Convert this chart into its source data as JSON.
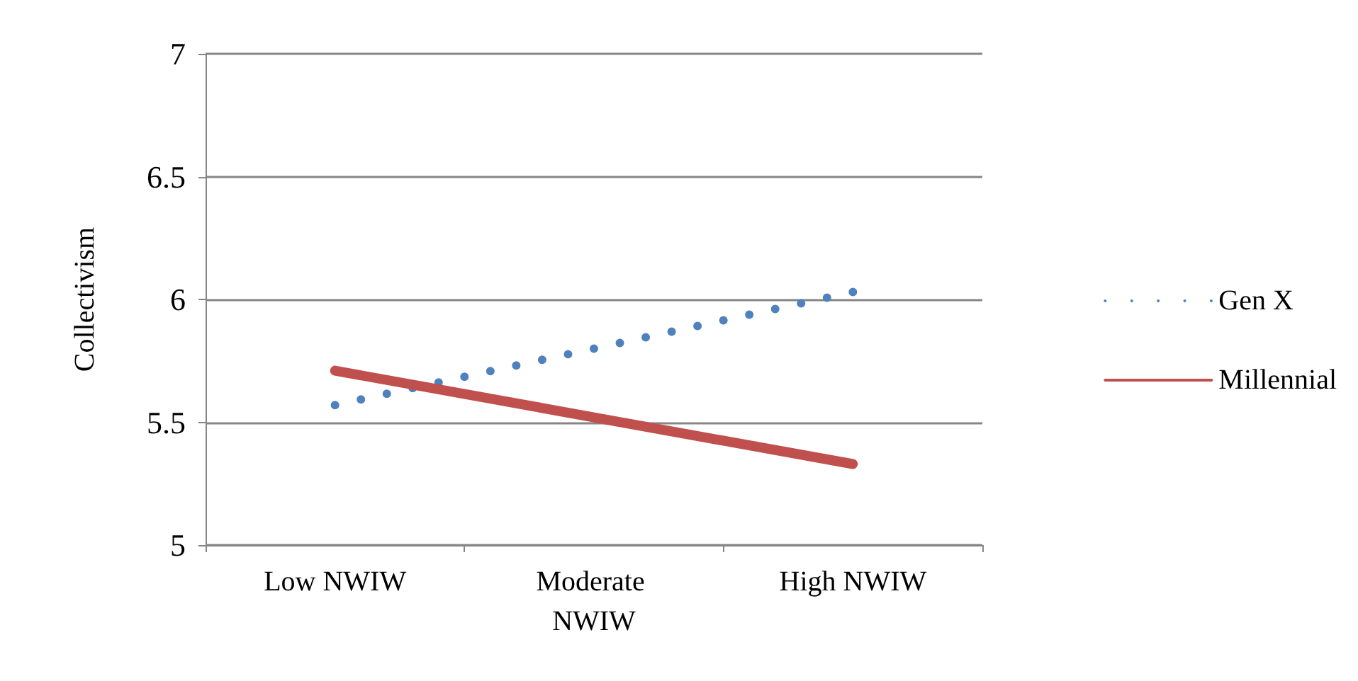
{
  "chart_data": {
    "type": "line",
    "ylabel": "Collectivism",
    "categories": [
      "Low NWIW",
      "Moderate NWIW",
      "High NWIW"
    ],
    "series": [
      {
        "name": "Gen X",
        "color": "#4f81bd",
        "values": [
          5.57,
          5.8,
          6.03
        ],
        "line_style": "dotted"
      },
      {
        "name": "Millennial",
        "color": "#c0504d",
        "values": [
          5.71,
          5.52,
          5.33
        ],
        "line_style": "solid"
      }
    ],
    "ylim": [
      5,
      7
    ],
    "yticks": [
      5,
      5.5,
      6,
      6.5,
      7
    ],
    "grid": "y",
    "legend": "right",
    "marker": "none"
  }
}
